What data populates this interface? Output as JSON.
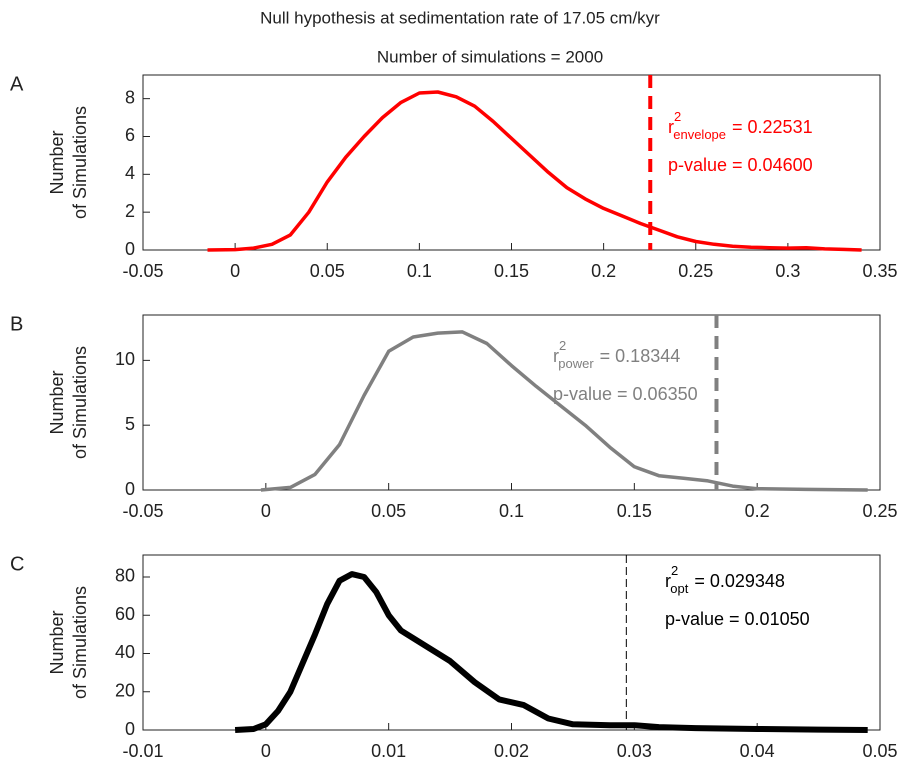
{
  "chart_data": [
    {
      "type": "line",
      "title": "Null hypothesis at sedimentation rate of 17.05 cm/kyr",
      "subtitle": "Number of simulations = 2000",
      "panel": "A",
      "ylabel": [
        "Number",
        "of Simulations"
      ],
      "xlim": [
        -0.05,
        0.35
      ],
      "xticks": [
        -0.05,
        0,
        0.05,
        0.1,
        0.15,
        0.2,
        0.25,
        0.3,
        0.35
      ],
      "ylim": [
        0,
        9.25
      ],
      "yticks": [
        0,
        2,
        4,
        6,
        8
      ],
      "series": [
        {
          "color": "#ff0000",
          "x": [
            -0.015,
            0,
            0.01,
            0.02,
            0.03,
            0.04,
            0.05,
            0.06,
            0.07,
            0.08,
            0.09,
            0.1,
            0.11,
            0.12,
            0.13,
            0.14,
            0.15,
            0.16,
            0.17,
            0.18,
            0.19,
            0.2,
            0.21,
            0.22,
            0.23,
            0.24,
            0.25,
            0.26,
            0.27,
            0.28,
            0.29,
            0.3,
            0.31,
            0.32,
            0.33,
            0.34
          ],
          "values": [
            0,
            0.02,
            0.1,
            0.3,
            0.8,
            2,
            3.6,
            4.9,
            6,
            7,
            7.8,
            8.3,
            8.35,
            8.1,
            7.6,
            6.8,
            5.9,
            5,
            4.1,
            3.3,
            2.7,
            2.2,
            1.8,
            1.4,
            1.05,
            0.7,
            0.45,
            0.3,
            0.2,
            0.15,
            0.12,
            0.1,
            0.12,
            0.06,
            0.03,
            0
          ]
        }
      ],
      "vline": {
        "x": 0.22531,
        "color": "#ff0000"
      },
      "annotations": [
        {
          "base": "r",
          "sup": "2",
          "sub": "envelope",
          "text": "= 0.22531"
        },
        {
          "text": "p-value = 0.04600"
        }
      ],
      "annotation_color": "#ff0000"
    },
    {
      "type": "line",
      "panel": "B",
      "ylabel": [
        "Number",
        "of Simulations"
      ],
      "xlim": [
        -0.05,
        0.25
      ],
      "xticks": [
        -0.05,
        0,
        0.05,
        0.1,
        0.15,
        0.2,
        0.25
      ],
      "ylim": [
        0,
        13.5
      ],
      "yticks": [
        0,
        5,
        10
      ],
      "series": [
        {
          "color": "#808080",
          "x": [
            -0.002,
            0.01,
            0.02,
            0.03,
            0.04,
            0.05,
            0.06,
            0.07,
            0.08,
            0.09,
            0.1,
            0.11,
            0.12,
            0.13,
            0.14,
            0.15,
            0.16,
            0.17,
            0.18,
            0.19,
            0.2,
            0.22,
            0.245
          ],
          "values": [
            0,
            0.2,
            1.2,
            3.5,
            7.3,
            10.7,
            11.8,
            12.1,
            12.2,
            11.3,
            9.6,
            8,
            6.5,
            5,
            3.3,
            1.8,
            1.1,
            0.9,
            0.7,
            0.3,
            0.1,
            0.05,
            0
          ]
        }
      ],
      "vline": {
        "x": 0.18344,
        "color": "#808080"
      },
      "annotations": [
        {
          "base": "r",
          "sup": "2",
          "sub": "power",
          "text": "= 0.18344"
        },
        {
          "text": "p-value = 0.06350"
        }
      ],
      "annotation_color": "#808080"
    },
    {
      "type": "line",
      "panel": "C",
      "ylabel": [
        "Number",
        "of Simulations"
      ],
      "xlim": [
        -0.01,
        0.05
      ],
      "xticks": [
        -0.01,
        0,
        0.01,
        0.02,
        0.03,
        0.04,
        0.05
      ],
      "ylim": [
        0,
        91.5
      ],
      "yticks": [
        0,
        20,
        40,
        60,
        80
      ],
      "series": [
        {
          "color": "#000000",
          "x": [
            -0.0025,
            -0.001,
            0,
            0.001,
            0.002,
            0.003,
            0.004,
            0.005,
            0.006,
            0.007,
            0.008,
            0.009,
            0.01,
            0.011,
            0.013,
            0.015,
            0.017,
            0.019,
            0.021,
            0.023,
            0.025,
            0.028,
            0.03,
            0.032,
            0.035,
            0.04,
            0.045,
            0.049
          ],
          "values": [
            0,
            0.5,
            3,
            10,
            20,
            35,
            50,
            66,
            78,
            81.5,
            80,
            72,
            60,
            52,
            44,
            36,
            25,
            16,
            13,
            6,
            3,
            2.5,
            2.5,
            1.5,
            1,
            0.5,
            0.2,
            0
          ]
        }
      ],
      "vline": {
        "x": 0.029348,
        "color": "#000000"
      },
      "annotations": [
        {
          "base": "r",
          "sup": "2",
          "sub": "opt",
          "text": "= 0.029348"
        },
        {
          "text": "p-value = 0.01050"
        }
      ],
      "annotation_color": "#000000"
    }
  ]
}
